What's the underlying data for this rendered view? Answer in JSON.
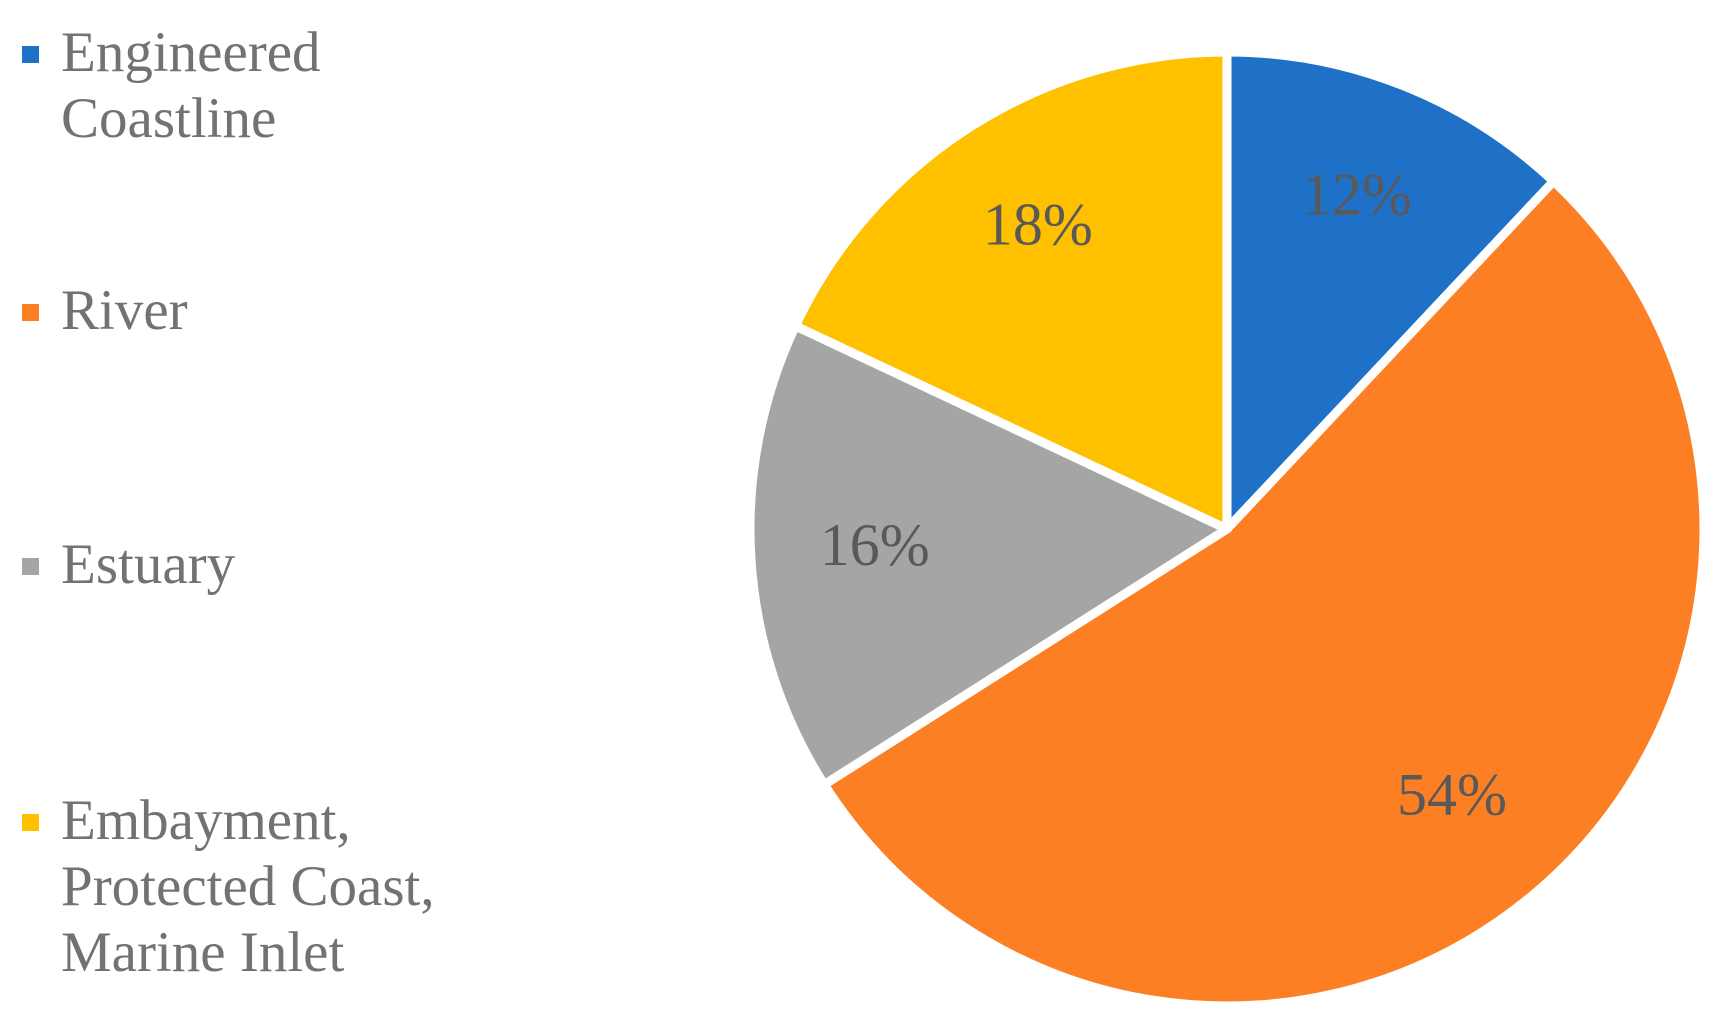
{
  "chart_data": {
    "type": "pie",
    "categories": [
      "Engineered Coastline",
      "River",
      "Estuary",
      "Embayment, Protected Coast, Marine Inlet"
    ],
    "values": [
      12,
      54,
      16,
      18
    ],
    "value_labels": [
      "12%",
      "54%",
      "16%",
      "18%"
    ],
    "colors": [
      "#1f71c7",
      "#fd7f24",
      "#a5a5a5",
      "#ffc000"
    ],
    "legend": "left"
  }
}
